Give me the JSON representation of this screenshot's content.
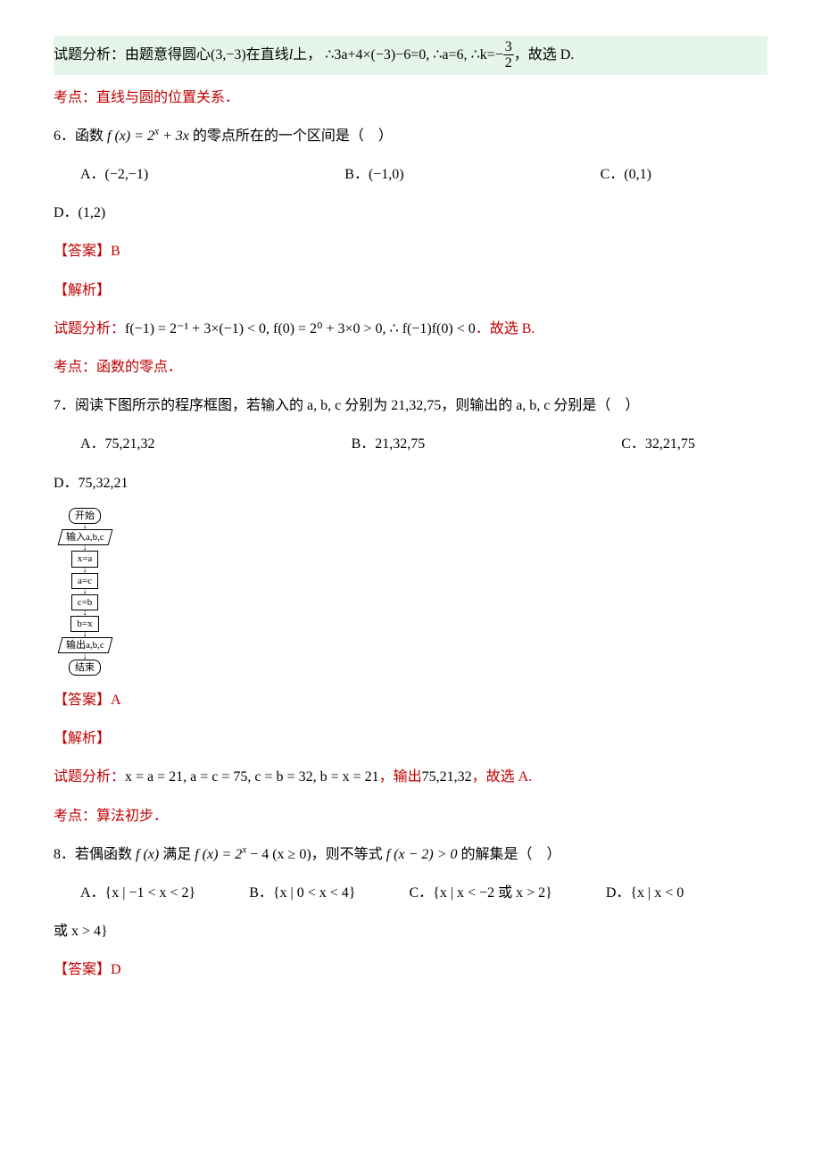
{
  "band": {
    "text_prefix": "试题分析：由题意得圆心",
    "center": "(3,−3)",
    "text_mid1": "在直线",
    "line_l": "l",
    "text_mid2": "上，",
    "therefore1": "∴3a+4×(−3)−6=0,",
    "therefore2": "∴a=6,",
    "therefore3": "∴k=−",
    "frac_num": "3",
    "frac_den": "2",
    "suffix": "，故选 D."
  },
  "kaodian5": "考点：直线与圆的位置关系．",
  "q6": {
    "stem_pre": "6．函数 ",
    "func": "f (x) = 2",
    "exp": "x",
    "plus": " + 3x",
    "stem_post": " 的零点所在的一个区间是（　）",
    "optA": "A．(−2,−1)",
    "optB": "B．(−1,0)",
    "optC": "C．(0,1)",
    "optD": "D．(1,2)",
    "ans": "【答案】B",
    "jiexi": "【解析】",
    "fenxi_pre": "试题分析：",
    "fenxi_math": "f(−1) = 2⁻¹ + 3×(−1) < 0, f(0) = 2⁰ + 3×0 > 0, ∴ f(−1)f(0) < 0",
    "fenxi_post": "．故选 B.",
    "kaodian": "考点：函数的零点．"
  },
  "q7": {
    "stem": "7．阅读下图所示的程序框图，若输入的 a, b, c 分别为 21,32,75，则输出的 a, b, c 分别是（　）",
    "optA": "A．75,21,32",
    "optB": "B．21,32,75",
    "optC": "C．32,21,75",
    "optD": "D．75,32,21",
    "flow": {
      "n1": "开始",
      "n2": "输入a,b,c",
      "n3": "x=a",
      "n4": "a=c",
      "n5": "c=b",
      "n6": "b=x",
      "n7": "输出a,b,c",
      "n8": "结束"
    },
    "ans": "【答案】A",
    "jiexi": "【解析】",
    "fenxi_pre": "试题分析：",
    "fenxi_math": "x = a = 21, a = c = 75, c = b = 32, b = x = 21",
    "fenxi_mid": "，输出",
    "fenxi_out": "75,21,32",
    "fenxi_post": "，故选 A.",
    "kaodian": "考点：算法初步．"
  },
  "q8": {
    "stem_pre": "8．若偶函数 ",
    "f1": "f (x)",
    "stem_mid1": " 满足 ",
    "f2": "f (x) = 2",
    "exp": "x",
    "minus": " − 4 (x ≥ 0)",
    "stem_mid2": "，则不等式 ",
    "f3": "f (x − 2) > 0",
    "stem_post": " 的解集是（　）",
    "optA": "A．{x | −1 < x < 2}",
    "optB": "B．{x | 0 < x < 4}",
    "optC": "C．{x | x < −2 或 x > 2}",
    "optD_pre": "D．{x | x < 0",
    "optD_post": "或 x > 4}",
    "ans": "【答案】D"
  },
  "colors": {
    "band_bg": "#e6f5ea",
    "red": "#c00000",
    "text": "#000000"
  }
}
